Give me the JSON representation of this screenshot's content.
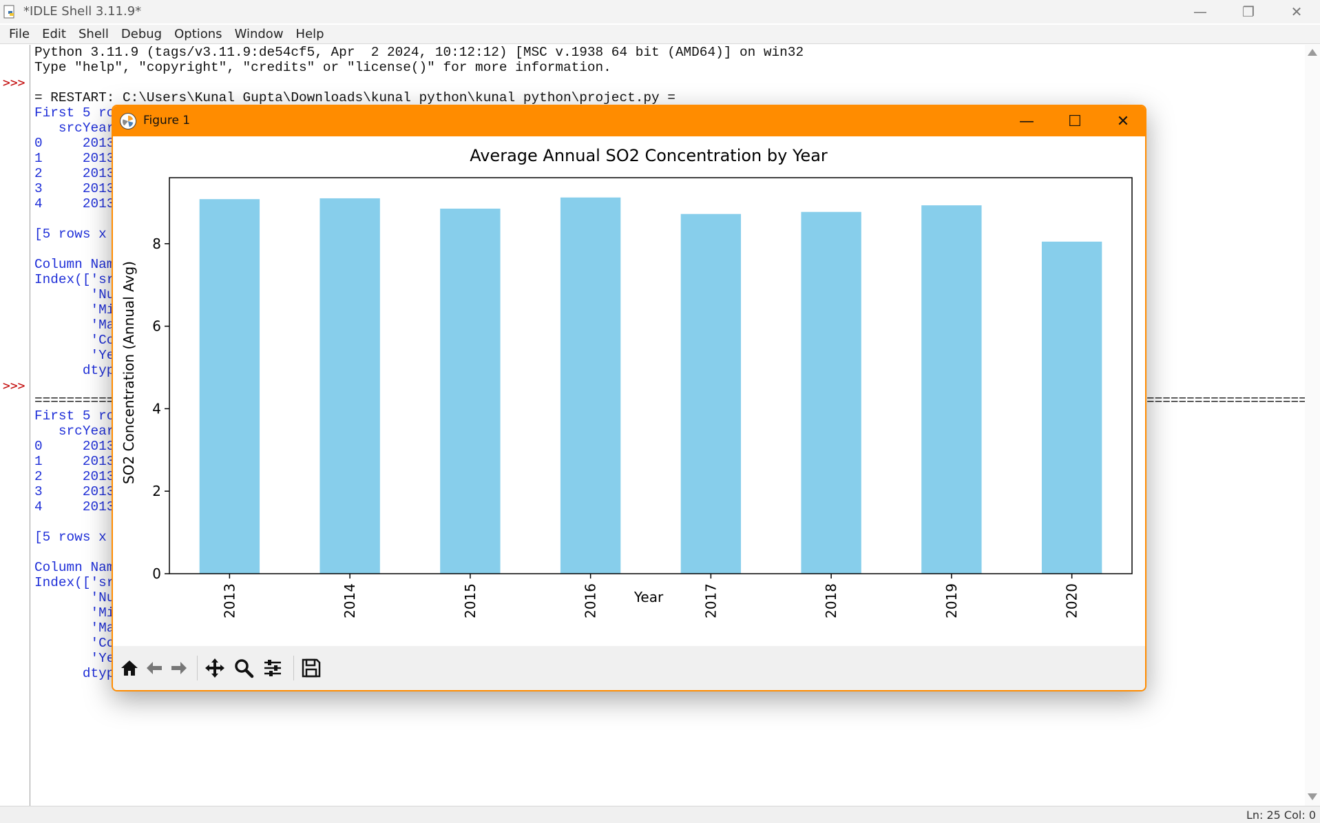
{
  "window": {
    "title": "*IDLE Shell 3.11.9*",
    "minimize_glyph": "—",
    "restore_glyph": "❐",
    "close_glyph": "✕"
  },
  "menu": [
    "File",
    "Edit",
    "Shell",
    "Debug",
    "Options",
    "Window",
    "Help"
  ],
  "prompts": [
    ">>>",
    ">>>"
  ],
  "shell_lines": [
    {
      "text": "Python 3.11.9 (tags/v3.11.9:de54cf5, Apr  2 2024, 10:12:12) [MSC v.1938 64 bit (AMD64)] on win32",
      "color": "black"
    },
    {
      "text": "Type \"help\", \"copyright\", \"credits\" or \"license()\" for more information.",
      "color": "black"
    },
    {
      "text": "",
      "color": "black"
    },
    {
      "text": "= RESTART: C:\\Users\\Kunal Gupta\\Downloads\\kunal python\\kunal python\\project.py =",
      "color": "black"
    },
    {
      "text": "First 5 ro",
      "color": "blue"
    },
    {
      "text": "   srcYear",
      "color": "blue"
    },
    {
      "text": "0     2013",
      "color": "blue"
    },
    {
      "text": "1     2013",
      "color": "blue"
    },
    {
      "text": "2     2013",
      "color": "blue"
    },
    {
      "text": "3     2013",
      "color": "blue"
    },
    {
      "text": "4     2013",
      "color": "blue"
    },
    {
      "text": "",
      "color": "blue"
    },
    {
      "text": "[5 rows x",
      "color": "blue"
    },
    {
      "text": "",
      "color": "blue"
    },
    {
      "text": "Column Nam",
      "color": "blue"
    },
    {
      "text": "Index(['sr",
      "color": "blue"
    },
    {
      "text": "       'Nu",
      "color": "blue"
    },
    {
      "text": "       'Mi",
      "color": "blue"
    },
    {
      "text": "       'Ma",
      "color": "blue"
    },
    {
      "text": "       'Co",
      "color": "blue"
    },
    {
      "text": "       'Ye",
      "color": "blue"
    },
    {
      "text": "      dtyp",
      "color": "blue"
    },
    {
      "text": "",
      "color": "blue"
    },
    {
      "text": "==========",
      "color": "black"
    },
    {
      "text": "First 5 ro",
      "color": "blue"
    },
    {
      "text": "   srcYear",
      "color": "blue"
    },
    {
      "text": "0     2013",
      "color": "blue"
    },
    {
      "text": "1     2013",
      "color": "blue"
    },
    {
      "text": "2     2013",
      "color": "blue"
    },
    {
      "text": "3     2013",
      "color": "blue"
    },
    {
      "text": "4     2013",
      "color": "blue"
    },
    {
      "text": "",
      "color": "blue"
    },
    {
      "text": "[5 rows x",
      "color": "blue"
    },
    {
      "text": "",
      "color": "blue"
    },
    {
      "text": "Column Nam",
      "color": "blue"
    },
    {
      "text": "Index(['sr",
      "color": "blue"
    },
    {
      "text": "       'Nu",
      "color": "blue"
    },
    {
      "text": "       'Mi",
      "color": "blue"
    },
    {
      "text": "       'Ma",
      "color": "blue"
    },
    {
      "text": "       'Co",
      "color": "blue"
    },
    {
      "text": "       'Ye",
      "color": "blue"
    },
    {
      "text": "      dtyp",
      "color": "blue"
    }
  ],
  "separator_right": "====================",
  "status": {
    "text": "Ln: 25   Col: 0"
  },
  "figure": {
    "title": "Figure 1",
    "minimize_glyph": "—",
    "maximize_glyph": "☐",
    "close_glyph": "✕",
    "toolbar": [
      "home-icon",
      "back-arrow-icon",
      "forward-arrow-icon",
      "pan-icon",
      "zoom-icon",
      "configure-subplots-icon",
      "save-icon"
    ]
  },
  "chart_data": {
    "type": "bar",
    "title": "Average Annual SO2 Concentration by Year",
    "xlabel": "Year",
    "ylabel": "SO2 Concentration (Annual Avg)",
    "categories": [
      "2013",
      "2014",
      "2015",
      "2016",
      "2017",
      "2018",
      "2019",
      "2020"
    ],
    "values": [
      9.08,
      9.1,
      8.85,
      9.12,
      8.72,
      8.77,
      8.93,
      8.05
    ],
    "ylim": [
      0,
      9.6
    ],
    "yticks": [
      0,
      2,
      4,
      6,
      8
    ],
    "bar_color": "#87ceeb",
    "grid": false,
    "legend": "none"
  },
  "colors": {
    "figure_accent": "#ff8c00",
    "shell_output": "#1f2fd8",
    "prompt": "#c00000"
  }
}
